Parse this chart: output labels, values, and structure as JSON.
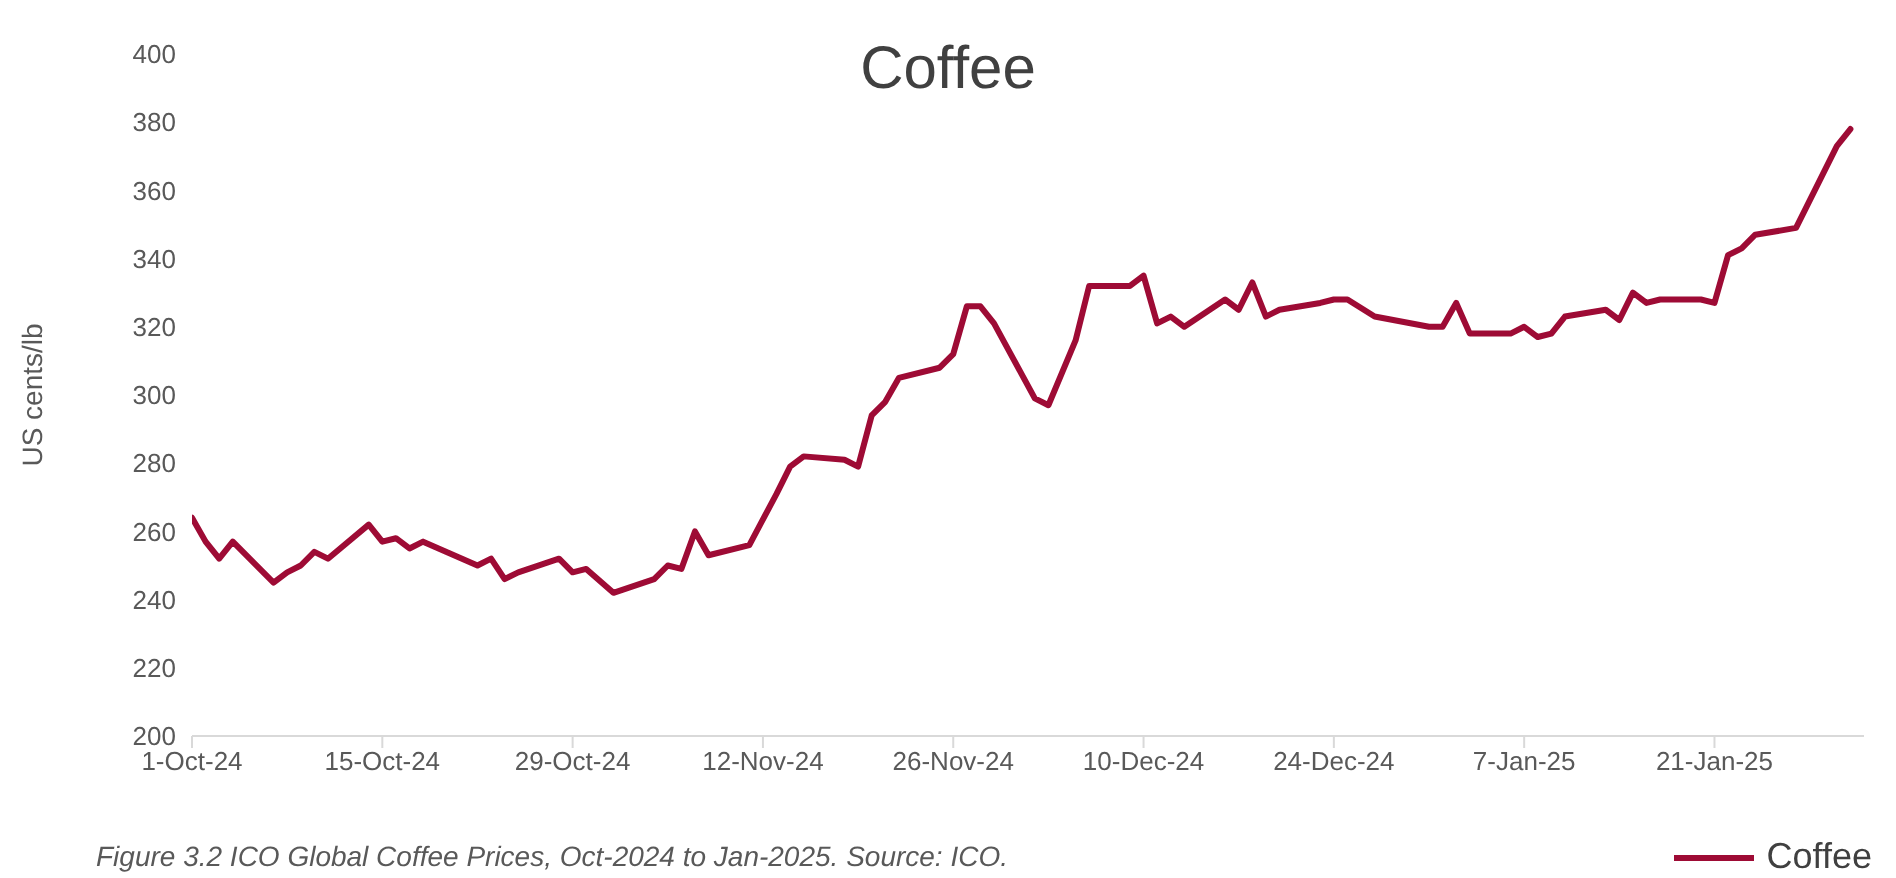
{
  "chart_data": {
    "type": "line",
    "title": "Coffee",
    "ylabel": "US cents/lb",
    "annotations": [
      "Figure 3.2 ICO Global Coffee Prices, Oct-2024 to Jan-2025. Source: ICO."
    ],
    "x": [
      "2024-10-01",
      "2024-10-02",
      "2024-10-03",
      "2024-10-04",
      "2024-10-07",
      "2024-10-08",
      "2024-10-09",
      "2024-10-10",
      "2024-10-11",
      "2024-10-14",
      "2024-10-15",
      "2024-10-16",
      "2024-10-17",
      "2024-10-18",
      "2024-10-22",
      "2024-10-23",
      "2024-10-24",
      "2024-10-25",
      "2024-10-28",
      "2024-10-29",
      "2024-10-30",
      "2024-11-01",
      "2024-11-04",
      "2024-11-05",
      "2024-11-06",
      "2024-11-07",
      "2024-11-08",
      "2024-11-11",
      "2024-11-13",
      "2024-11-14",
      "2024-11-15",
      "2024-11-18",
      "2024-11-19",
      "2024-11-20",
      "2024-11-21",
      "2024-11-22",
      "2024-11-25",
      "2024-11-26",
      "2024-11-27",
      "2024-11-28",
      "2024-11-29",
      "2024-12-02",
      "2024-12-03",
      "2024-12-05",
      "2024-12-06",
      "2024-12-09",
      "2024-12-10",
      "2024-12-11",
      "2024-12-12",
      "2024-12-13",
      "2024-12-16",
      "2024-12-17",
      "2024-12-18",
      "2024-12-19",
      "2024-12-20",
      "2024-12-23",
      "2024-12-24",
      "2024-12-25",
      "2024-12-27",
      "2024-12-31",
      "2025-01-01",
      "2025-01-02",
      "2025-01-03",
      "2025-01-06",
      "2025-01-07",
      "2025-01-08",
      "2025-01-09",
      "2025-01-10",
      "2025-01-13",
      "2025-01-14",
      "2025-01-15",
      "2025-01-16",
      "2025-01-17",
      "2025-01-20",
      "2025-01-21",
      "2025-01-22",
      "2025-01-23",
      "2025-01-24",
      "2025-01-27",
      "2025-01-30",
      "2025-01-31"
    ],
    "series": [
      {
        "name": "Coffee",
        "color": "#9e0b35",
        "values": [
          264,
          257,
          252,
          257,
          245,
          248,
          250,
          254,
          252,
          262,
          257,
          258,
          255,
          257,
          250,
          252,
          246,
          248,
          252,
          248,
          249,
          242,
          246,
          250,
          249,
          260,
          253,
          256,
          271,
          279,
          282,
          281,
          279,
          294,
          298,
          305,
          308,
          312,
          326,
          326,
          321,
          299,
          297,
          316,
          332,
          332,
          335,
          321,
          323,
          320,
          328,
          325,
          333,
          323,
          325,
          327,
          328,
          328,
          323,
          320,
          320,
          327,
          318,
          318,
          320,
          317,
          318,
          323,
          325,
          322,
          330,
          327,
          328,
          328,
          327,
          341,
          343,
          347,
          349,
          373,
          378
        ]
      }
    ],
    "xlim": [
      "2024-10-01",
      "2025-02-01"
    ],
    "xticks": [
      {
        "value": "2024-10-01",
        "label": "1-Oct-24"
      },
      {
        "value": "2024-10-15",
        "label": "15-Oct-24"
      },
      {
        "value": "2024-10-29",
        "label": "29-Oct-24"
      },
      {
        "value": "2024-11-12",
        "label": "12-Nov-24"
      },
      {
        "value": "2024-11-26",
        "label": "26-Nov-24"
      },
      {
        "value": "2024-12-10",
        "label": "10-Dec-24"
      },
      {
        "value": "2024-12-24",
        "label": "24-Dec-24"
      },
      {
        "value": "2025-01-07",
        "label": "7-Jan-25"
      },
      {
        "value": "2025-01-21",
        "label": "21-Jan-25"
      }
    ],
    "ylim": [
      200,
      400
    ],
    "yticks": [
      200,
      220,
      240,
      260,
      280,
      300,
      320,
      340,
      360,
      380,
      400
    ],
    "grid": false,
    "legend": "bottom right",
    "marker": "none",
    "line_style": "solid"
  }
}
